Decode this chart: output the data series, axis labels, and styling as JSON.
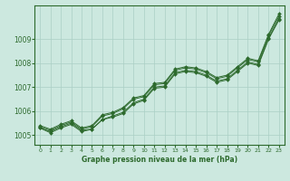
{
  "x": [
    0,
    1,
    2,
    3,
    4,
    5,
    6,
    7,
    8,
    9,
    10,
    11,
    12,
    13,
    14,
    15,
    16,
    17,
    18,
    19,
    20,
    21,
    22,
    23
  ],
  "lines": [
    [
      1005.3,
      1005.15,
      1005.35,
      1005.5,
      1005.2,
      1005.25,
      1005.65,
      1005.8,
      1005.95,
      1006.35,
      1006.5,
      1007.0,
      1007.05,
      1007.6,
      1007.7,
      1007.65,
      1007.5,
      1007.25,
      1007.35,
      1007.7,
      1008.05,
      1007.95,
      1009.05,
      1009.85
    ],
    [
      1005.3,
      1005.1,
      1005.3,
      1005.45,
      1005.15,
      1005.25,
      1005.65,
      1005.75,
      1005.9,
      1006.3,
      1006.45,
      1006.95,
      1007.0,
      1007.55,
      1007.65,
      1007.6,
      1007.45,
      1007.2,
      1007.3,
      1007.65,
      1008.0,
      1007.9,
      1009.0,
      1009.8
    ],
    [
      1005.35,
      1005.2,
      1005.4,
      1005.55,
      1005.25,
      1005.35,
      1005.8,
      1005.9,
      1006.1,
      1006.5,
      1006.6,
      1007.1,
      1007.15,
      1007.7,
      1007.8,
      1007.75,
      1007.6,
      1007.35,
      1007.45,
      1007.8,
      1008.15,
      1008.05,
      1009.15,
      1009.95
    ],
    [
      1005.4,
      1005.25,
      1005.45,
      1005.6,
      1005.3,
      1005.4,
      1005.85,
      1005.95,
      1006.15,
      1006.55,
      1006.65,
      1007.15,
      1007.2,
      1007.75,
      1007.85,
      1007.8,
      1007.65,
      1007.4,
      1007.5,
      1007.85,
      1008.2,
      1008.1,
      1009.2,
      1010.05
    ]
  ],
  "lines_upper": [
    [
      1005.3,
      1005.2,
      1005.4,
      1005.55,
      1005.25,
      1005.4,
      1005.85,
      1005.95,
      1006.15,
      1006.55,
      1006.65,
      1007.15,
      1007.2,
      1007.75,
      1007.85,
      1007.8,
      1007.65,
      1007.4,
      1007.5,
      1007.85,
      1008.2,
      1008.1,
      1009.2,
      1010.05
    ]
  ],
  "has_markers": [
    true,
    true,
    true,
    true
  ],
  "line_colors": [
    "#2d6a2d",
    "#2d6a2d",
    "#2d6a2d",
    "#2d6a2d"
  ],
  "bg_color": "#cce8df",
  "grid_color": "#aacfc5",
  "title": "Graphe pression niveau de la mer (hPa)",
  "ylim": [
    1004.6,
    1010.4
  ],
  "yticks": [
    1005,
    1006,
    1007,
    1008,
    1009
  ],
  "xlim": [
    -0.5,
    23.5
  ]
}
